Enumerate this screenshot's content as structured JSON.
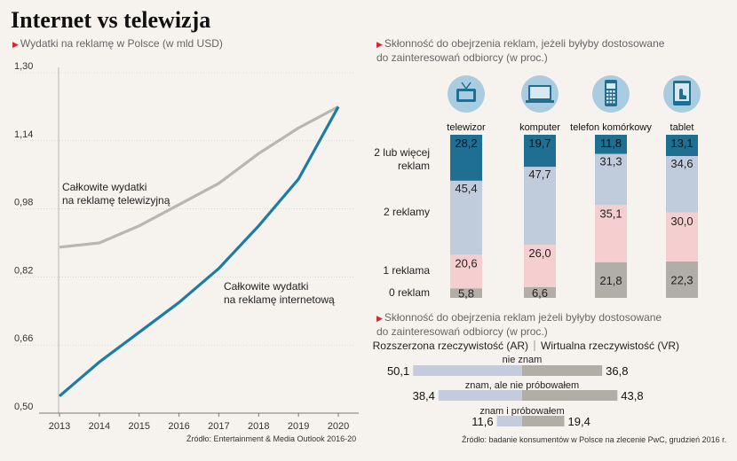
{
  "title": "Internet vs telewizja",
  "line_panel": {
    "subtitle": "Wydatki na reklamę w Polsce (w mld USD)",
    "source": "Źródło: Entertainment & Media Outlook 2016-20"
  },
  "stack_panel": {
    "subtitle_line1": "Skłonność do obejrzenia reklam, jeżeli byłyby dostosowane",
    "subtitle_line2": "do zainteresowań odbiorcy (w proc.)"
  },
  "ar_panel": {
    "subtitle_line1": "Skłonność do obejrzenia reklam jeżeli byłyby dostosowane",
    "subtitle_line2": "do zainteresowań odbiorcy (w proc.)",
    "source": "Źródło: badanie konsumentów w Polsce na zlecenie PwC, grudzień 2016 r."
  },
  "icons": [
    "tv-icon",
    "computer-icon",
    "phone-icon",
    "tablet-icon"
  ],
  "chart_data": [
    {
      "type": "line",
      "x": [
        "2013",
        "2014",
        "2015",
        "2016",
        "2017",
        "2018",
        "2019",
        "2020"
      ],
      "ylim": [
        0.5,
        1.3
      ],
      "yticks": [
        "0,50",
        "0,66",
        "0,82",
        "0,98",
        "1,14",
        "1,30"
      ],
      "series": [
        {
          "name": "Całkowite wydatki na reklamę telewizyjną",
          "label_lines": [
            "Całkowite wydatki",
            "na reklamę telewizyjną"
          ],
          "color": "#b8b6b2",
          "values": [
            0.89,
            0.9,
            0.94,
            0.99,
            1.04,
            1.11,
            1.17,
            1.22
          ]
        },
        {
          "name": "Całkowite wydatki na reklamę internetową",
          "label_lines": [
            "Całkowite wydatki",
            "na reklamę internetową"
          ],
          "color": "#1e7ba3",
          "values": [
            0.54,
            0.62,
            0.69,
            0.76,
            0.84,
            0.94,
            1.05,
            1.22
          ]
        }
      ],
      "grid": true
    },
    {
      "type": "bar",
      "stacked": true,
      "categories": [
        "telewizor",
        "komputer",
        "telefon komórkowy",
        "tablet"
      ],
      "segment_labels": [
        [
          "2 lub więcej",
          "reklam"
        ],
        [
          "2 reklamy"
        ],
        [
          "1 reklama"
        ],
        [
          "0 reklam"
        ]
      ],
      "series": [
        {
          "name": "2 lub więcej reklam",
          "color": "#1f6f93",
          "values": [
            28.2,
            19.7,
            11.8,
            13.1
          ],
          "labels": [
            "28,2",
            "19,7",
            "11,8",
            "13,1"
          ]
        },
        {
          "name": "2 reklamy",
          "color": "#c0cbdc",
          "values": [
            45.4,
            47.7,
            31.3,
            34.6
          ],
          "labels": [
            "45,4",
            "47,7",
            "31,3",
            "34,6"
          ]
        },
        {
          "name": "1 reklama",
          "color": "#f5cfcf",
          "values": [
            20.6,
            26.0,
            35.1,
            30.0
          ],
          "labels": [
            "20,6",
            "26,0",
            "35,1",
            "30,0"
          ]
        },
        {
          "name": "0 reklam",
          "color": "#b1aea7",
          "values": [
            5.8,
            6.6,
            21.8,
            22.3
          ],
          "labels": [
            "5,8",
            "6,6",
            "21,8",
            "22,3"
          ]
        }
      ]
    },
    {
      "type": "bar",
      "orientation": "horizontal",
      "series_names": [
        "Rozszerzona rzeczywistość (AR)",
        "Wirtualna rzeczywistość (VR)"
      ],
      "categories": [
        "nie znam",
        "znam, ale nie próbowałem",
        "znam i próbowałem"
      ],
      "ar": [
        50.1,
        38.4,
        11.6
      ],
      "vr": [
        36.8,
        43.8,
        19.4
      ],
      "ar_labels": [
        "50,1",
        "38,4",
        "11,6"
      ],
      "vr_labels": [
        "36,8",
        "43,8",
        "19,4"
      ],
      "colors": {
        "ar": "#c3cbdc",
        "vr": "#b1aea7"
      }
    }
  ]
}
